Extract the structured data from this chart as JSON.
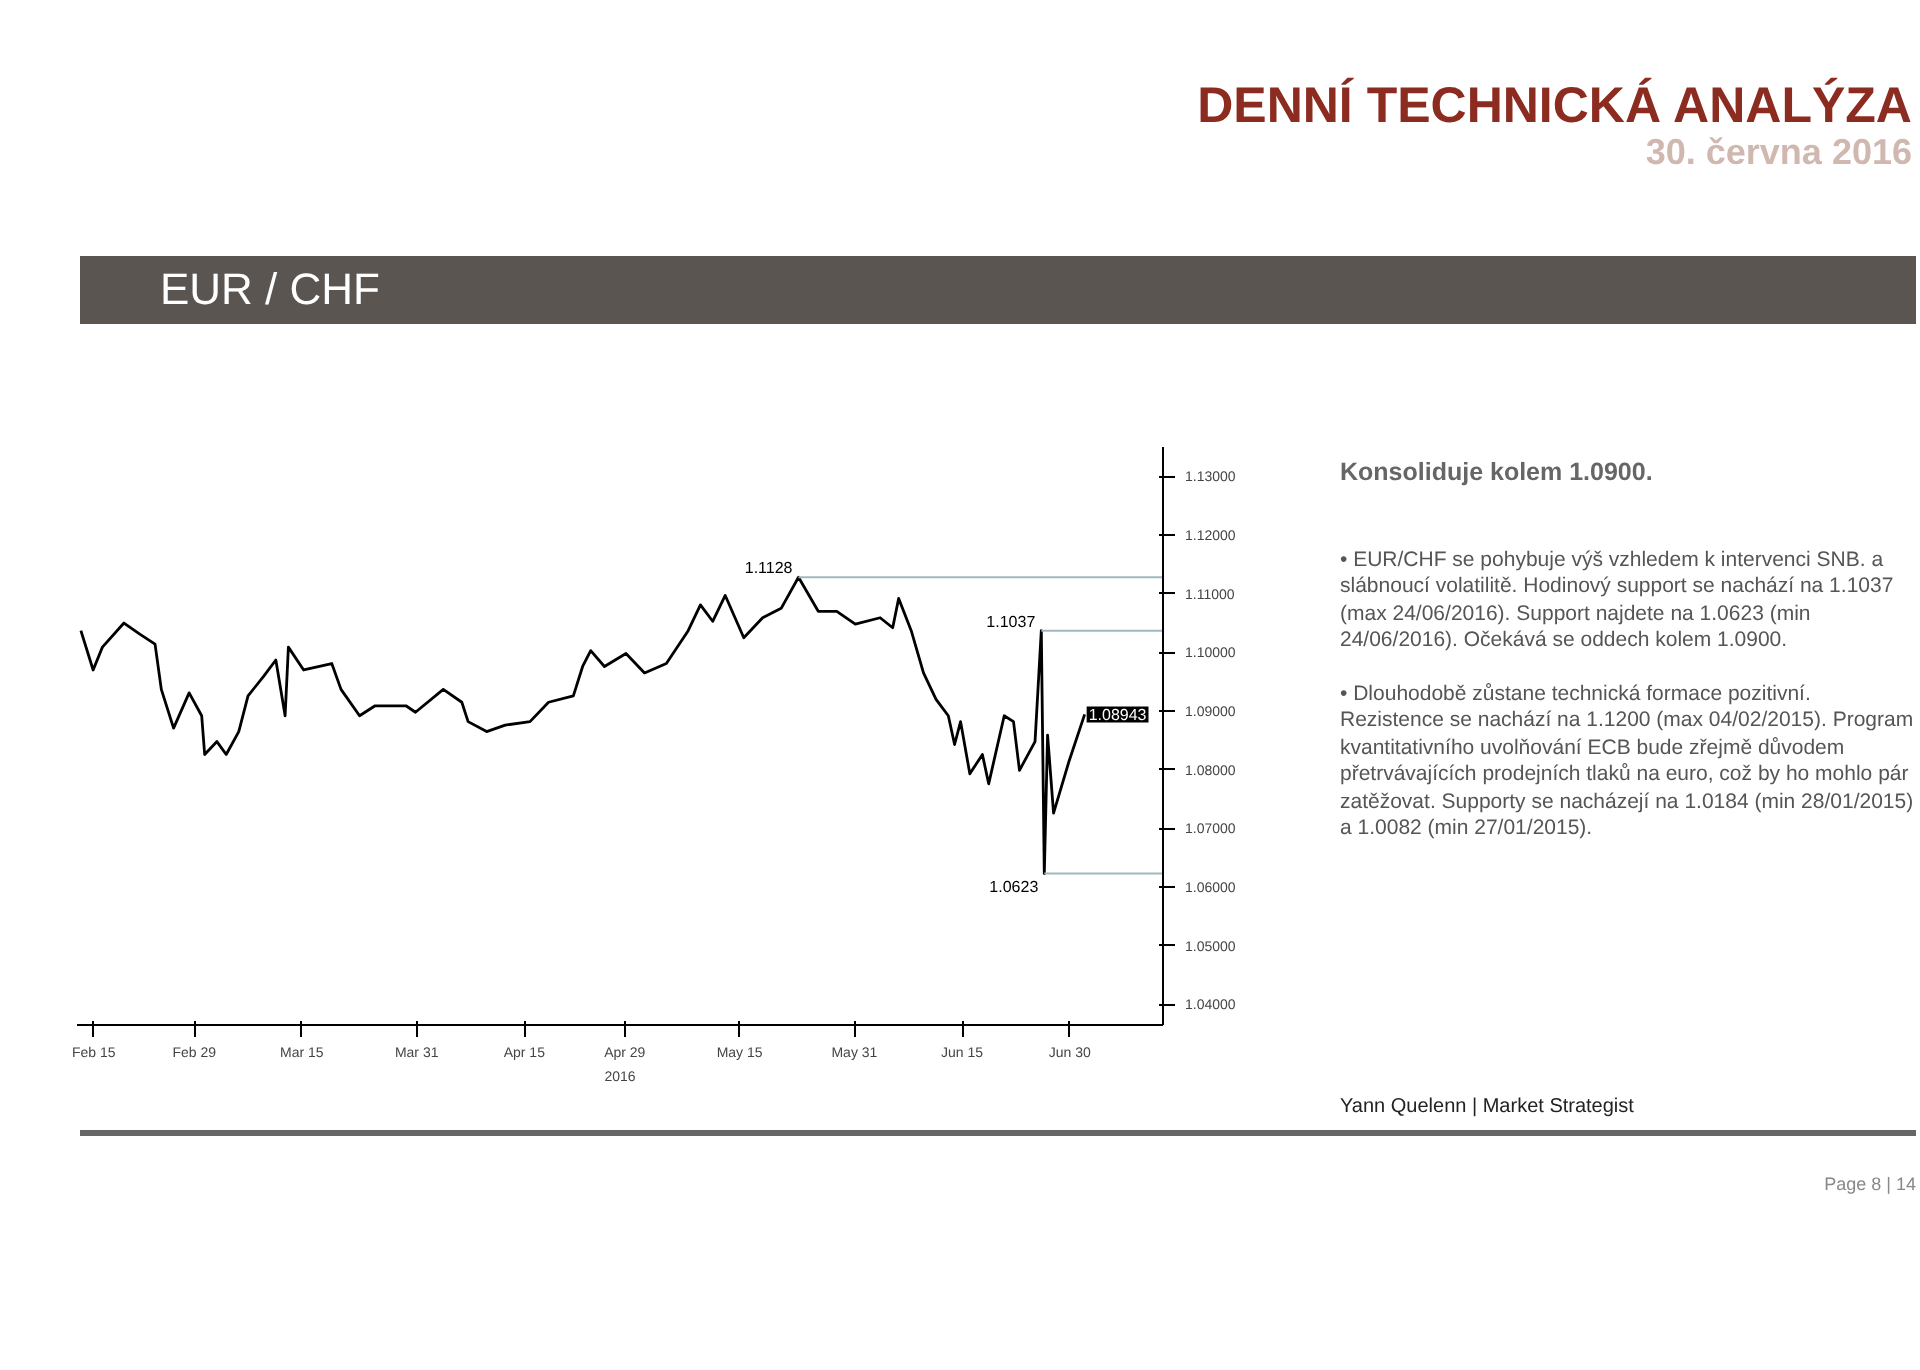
{
  "chart_data": {
    "type": "line",
    "title": "DENNÍ TECHNICKÁ ANALÝZA",
    "subtitle": "30. června 2016",
    "xlabel": "2016",
    "x": [
      "2016-02-13T05:00",
      "2016-02-14T22:00",
      "2016-02-16T05:00",
      "2016-02-19T05:00",
      "2016-02-21T10:00",
      "2016-02-23T13:00",
      "2016-02-24T10:00",
      "2016-02-26T03:00",
      "2016-02-28T07:00",
      "2016-03-01T01:00",
      "2016-03-01T11:00",
      "2016-03-03T04:00",
      "2016-03-04T11:00",
      "2016-03-06T05:00",
      "2016-03-07T12:00",
      "2016-03-09T16:00",
      "2016-03-11T09:00",
      "2016-03-12T16:00",
      "2016-03-13T03:00",
      "2016-03-15T06:00",
      "2016-03-19T04:00",
      "2016-03-20T11:00",
      "2016-03-23T01:00",
      "2016-03-25T05:00",
      "2016-03-29T12:00",
      "2016-03-30T20:00",
      "2016-04-03T17:00",
      "2016-04-06T07:00",
      "2016-04-07T04:00",
      "2016-04-09T18:00",
      "2016-04-12T08:00",
      "2016-04-15T19:00",
      "2016-04-18T09:00",
      "2016-04-21T20:00",
      "2016-04-23T03:00",
      "2016-04-24T06:00",
      "2016-04-26T04:00",
      "2016-04-29T04:00",
      "2016-05-01T18:00",
      "2016-05-04T19:00",
      "2016-05-07T20:00",
      "2016-05-09T13:00",
      "2016-05-11T06:00",
      "2016-05-13T00:00",
      "2016-05-15T14:00",
      "2016-05-18T05:00",
      "2016-05-20T19:00",
      "2016-05-23T05:00",
      "2016-05-25T23:00",
      "2016-05-28T13:00",
      "2016-05-31T03:00",
      "2016-06-03T14:00",
      "2016-06-05T08:00",
      "2016-06-06T04:00",
      "2016-06-07T22:00",
      "2016-06-09T15:00",
      "2016-06-11T09:00",
      "2016-06-13T02:00",
      "2016-06-13T23:00",
      "2016-06-14T19:00",
      "2016-06-16T02:00",
      "2016-06-17T20:00",
      "2016-06-18T17:00",
      "2016-06-20T21:00",
      "2016-06-22T04:00",
      "2016-06-23T00:00",
      "2016-06-25T04:00",
      "2016-06-26T01:00",
      "2016-06-26T11:00",
      "2016-06-26T22:00",
      "2016-06-27T18:00",
      "2016-06-29T22:00",
      "2016-07-02T02:00"
    ],
    "series": [
      {
        "color": "#000000",
        "values": [
          1.1037,
          1.097,
          1.1009,
          1.105,
          1.1031,
          1.1014,
          1.0937,
          1.0871,
          1.0931,
          1.0892,
          1.0826,
          1.0848,
          1.0826,
          1.0865,
          1.0926,
          1.0959,
          1.0987,
          1.0892,
          1.1009,
          1.097,
          1.0981,
          1.0937,
          1.0892,
          1.0909,
          1.0909,
          1.0898,
          1.0937,
          1.0915,
          1.0882,
          1.0865,
          1.0876,
          1.0882,
          1.0915,
          1.0926,
          1.0976,
          1.1003,
          1.0976,
          1.0998,
          1.0965,
          1.0981,
          1.1037,
          1.1081,
          1.1053,
          1.1097,
          1.1025,
          1.1059,
          1.1075,
          1.1128,
          1.107,
          1.107,
          1.1048,
          1.1059,
          1.1042,
          1.1092,
          1.1037,
          1.0965,
          1.092,
          1.0892,
          1.0843,
          1.0882,
          1.0793,
          1.0826,
          1.0776,
          1.0892,
          1.0882,
          1.0799,
          1.0848,
          1.1037,
          1.0623,
          1.0859,
          1.0726,
          1.0815,
          1.08943
        ]
      }
    ],
    "xlim": [
      "2016-02-12T16:00",
      "2016-07-13T00:00"
    ],
    "xticks": [
      {
        "value": "2016-02-15",
        "label": "Feb 15"
      },
      {
        "value": "2016-02-29",
        "label": "Feb 29"
      },
      {
        "value": "2016-03-15",
        "label": "Mar 15"
      },
      {
        "value": "2016-03-31",
        "label": "Mar 31"
      },
      {
        "value": "2016-04-15",
        "label": "Apr 15"
      },
      {
        "value": "2016-04-29",
        "label": "Apr 29"
      },
      {
        "value": "2016-05-15",
        "label": "May 15"
      },
      {
        "value": "2016-05-31",
        "label": "May 31"
      },
      {
        "value": "2016-06-15",
        "label": "Jun 15"
      },
      {
        "value": "2016-06-30",
        "label": "Jun 30"
      }
    ],
    "ylim": [
      1.0365,
      1.135
    ],
    "yticks": [
      {
        "value": 1.04,
        "label": "1.04000"
      },
      {
        "value": 1.05,
        "label": "1.05000"
      },
      {
        "value": 1.06,
        "label": "1.06000"
      },
      {
        "value": 1.07,
        "label": "1.07000"
      },
      {
        "value": 1.08,
        "label": "1.08000"
      },
      {
        "value": 1.09,
        "label": "1.09000"
      },
      {
        "value": 1.1,
        "label": "1.10000"
      },
      {
        "value": 1.11,
        "label": "1.11000"
      },
      {
        "value": 1.12,
        "label": "1.12000"
      },
      {
        "value": 1.13,
        "label": "1.13000"
      }
    ],
    "grid": false,
    "marker": "none",
    "line_style": "solid",
    "annotations": [
      "EUR / CHF",
      "Konsoliduje kolem 1.0900.",
      "• EUR/CHF se pohybuje výš vzhledem k intervenci SNB. a slábnoucí volatilitě. Hodinový support se nachází na 1.1037 (max 24/06/2016). Support najdete na  1.0623 (min 24/06/2016). Očekává se oddech kolem 1.0900.",
      "• Dlouhodobě zůstane technická formace pozitivní. Rezistence se nachází na 1.1200  (max 04/02/2015). Program kvantitativního uvolňování ECB bude zřejmě důvodem přetrvávajících prodejních  tlaků na euro, což by ho mohlo pár zatěžovat.  Supporty se nacházejí na 1.0184 (min 28/01/2015) a 1.0082 (min 27/01/2015).",
      "Yann Quelenn | Market Strategist",
      "Page 8 | 14",
      {
        "text": "1.1128",
        "x": "2016-05-23T05:00",
        "y": 1.1128
      },
      {
        "text": "1.1037",
        "x": "2016-06-26T01:00",
        "y": 1.1037
      },
      {
        "text": "1.0623",
        "x": "2016-06-26T11:00",
        "y": 1.0623
      },
      {
        "text": "1.08943",
        "x": "2016-07-02T02:00",
        "y": 1.08943
      }
    ]
  }
}
